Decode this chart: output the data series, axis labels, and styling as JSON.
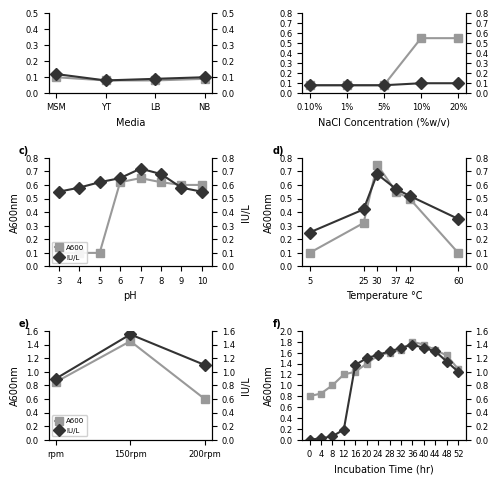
{
  "panel_c": {
    "label": "c)",
    "xlabel": "pH",
    "ylabel_left": "A600nm",
    "ylabel_right": "IU/L",
    "x": [
      3,
      4,
      5,
      6,
      7,
      8,
      9,
      10
    ],
    "a600": [
      0.1,
      0.1,
      0.1,
      0.62,
      0.65,
      0.62,
      0.6,
      0.6
    ],
    "iul": [
      0.55,
      0.58,
      0.62,
      0.65,
      0.72,
      0.68,
      0.58,
      0.55
    ],
    "ylim_left": [
      0,
      0.8
    ],
    "ylim_right": [
      0,
      0.8
    ],
    "yticks_left": [
      0,
      0.1,
      0.2,
      0.3,
      0.4,
      0.5,
      0.6,
      0.7,
      0.8
    ],
    "yticks_right": [
      0,
      0.1,
      0.2,
      0.3,
      0.4,
      0.5,
      0.6,
      0.7,
      0.8
    ]
  },
  "panel_d": {
    "label": "d)",
    "xlabel": "Temperature °C",
    "ylabel_left": "A600nm",
    "ylabel_right": "",
    "x_vals": [
      5,
      25,
      30,
      37,
      42,
      60
    ],
    "x_labels": [
      "5",
      "25",
      "30",
      "37",
      "42",
      "60"
    ],
    "a600": [
      0.1,
      0.32,
      0.75,
      0.55,
      0.5,
      0.1
    ],
    "iul": [
      0.25,
      0.42,
      0.68,
      0.57,
      0.52,
      0.35
    ],
    "ylim_left": [
      0,
      0.8
    ],
    "ylim_right": [
      0,
      0.8
    ],
    "yticks_left": [
      0,
      0.1,
      0.2,
      0.3,
      0.4,
      0.5,
      0.6,
      0.7,
      0.8
    ],
    "yticks_right": [
      0,
      0.1,
      0.2,
      0.3,
      0.4,
      0.5,
      0.6,
      0.7,
      0.8
    ]
  },
  "panel_e": {
    "label": "e)",
    "xlabel": "",
    "ylabel_left": "A600nm",
    "ylabel_right": "IU/L",
    "x": [
      0,
      1,
      2
    ],
    "x_labels": [
      "rpm",
      "150rpm",
      "200rpm"
    ],
    "a600": [
      0.85,
      1.45,
      0.6
    ],
    "iul": [
      0.9,
      1.55,
      1.1
    ],
    "ylim_left": [
      0,
      1.6
    ],
    "ylim_right": [
      0,
      1.6
    ],
    "yticks_right": [
      0,
      0.2,
      0.4,
      0.6,
      0.8,
      1.0,
      1.2,
      1.4,
      1.6
    ],
    "yticks_left": [
      0,
      0.2,
      0.4,
      0.6,
      0.8,
      1.0,
      1.2,
      1.4,
      1.6
    ]
  },
  "panel_f": {
    "label": "f)",
    "xlabel": "Incubation Time (hr)",
    "ylabel_left": "A600nm",
    "ylabel_right": "",
    "x": [
      0,
      4,
      8,
      12,
      16,
      20,
      24,
      28,
      32,
      36,
      40,
      44,
      48,
      52
    ],
    "a600": [
      0.8,
      0.85,
      1.0,
      1.2,
      1.25,
      1.4,
      1.55,
      1.6,
      1.65,
      1.8,
      1.75,
      1.65,
      1.55,
      1.3
    ],
    "iul": [
      0.0,
      0.02,
      0.05,
      0.15,
      1.1,
      1.2,
      1.25,
      1.3,
      1.35,
      1.4,
      1.35,
      1.3,
      1.15,
      1.0
    ],
    "ylim_left": [
      0,
      2.0
    ],
    "ylim_right": [
      0,
      1.6
    ],
    "yticks_left": [
      0,
      0.2,
      0.4,
      0.6,
      0.8,
      1.0,
      1.2,
      1.4,
      1.6,
      1.8,
      2.0
    ],
    "yticks_right": [
      0,
      0.2,
      0.4,
      0.6,
      0.8,
      1.0,
      1.2,
      1.4,
      1.6
    ]
  },
  "top_left": {
    "title": "",
    "xlabel": "Media",
    "x_labels": [
      "MSM",
      "YT",
      "LB",
      "NB"
    ],
    "x": [
      0,
      1,
      2,
      3
    ],
    "a600": [
      0.1,
      0.08,
      0.08,
      0.09
    ],
    "iul": [
      0.12,
      0.08,
      0.09,
      0.1
    ],
    "ylim": [
      0,
      0.5
    ],
    "yticks": [
      0,
      0.1,
      0.2,
      0.3,
      0.4,
      0.5
    ]
  },
  "top_right": {
    "title": "",
    "xlabel": "NaCl Concentration (%w/v)",
    "x_labels": [
      "0.10%",
      "1%",
      "5%",
      "10%",
      "20%"
    ],
    "x": [
      0,
      1,
      2,
      3,
      4
    ],
    "a600": [
      0.08,
      0.08,
      0.08,
      0.55,
      0.55
    ],
    "iul": [
      0.08,
      0.08,
      0.08,
      0.1,
      0.1
    ],
    "ylim": [
      0,
      0.8
    ],
    "yticks": [
      0,
      0.1,
      0.2,
      0.3,
      0.4,
      0.5,
      0.6,
      0.7,
      0.8
    ]
  },
  "colors": {
    "a600_color": "#999999",
    "iul_color": "#333333",
    "marker_a600": "s",
    "marker_iul": "D",
    "linewidth": 1.5,
    "markersize_main": 6,
    "markersize_f": 5
  }
}
